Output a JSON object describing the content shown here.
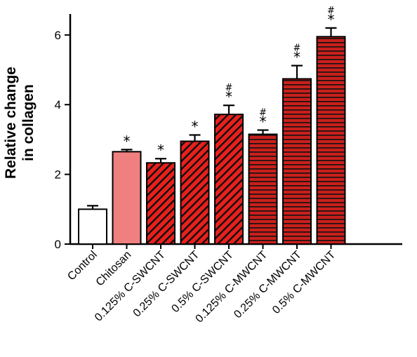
{
  "chart_data": {
    "type": "bar",
    "title": "",
    "xlabel": "",
    "ylabel_lines": [
      "Relative change",
      "in collagen"
    ],
    "ylim": [
      0,
      6.6
    ],
    "yticks": [
      "0",
      "2",
      "4",
      "6"
    ],
    "categories": [
      "Control",
      "Chitosan",
      "0.125% C-SWCNT",
      "0.25% C-SWCNT",
      "0.5% C-SWCNT",
      "0.125% C-MWCNT",
      "0.25% C-MWCNT",
      "0.5% C-MWCNT"
    ],
    "values": [
      1.0,
      2.65,
      2.33,
      2.95,
      3.72,
      3.15,
      4.74,
      5.95
    ],
    "errors": [
      0.1,
      0.06,
      0.12,
      0.18,
      0.26,
      0.12,
      0.38,
      0.25
    ],
    "annotations": [
      {
        "star": "",
        "hash": ""
      },
      {
        "star": "*",
        "hash": ""
      },
      {
        "star": "*",
        "hash": ""
      },
      {
        "star": "*",
        "hash": ""
      },
      {
        "star": "*",
        "hash": "#"
      },
      {
        "star": "*",
        "hash": "#"
      },
      {
        "star": "*",
        "hash": "#"
      },
      {
        "star": "*",
        "hash": "#"
      }
    ],
    "bar_styles": [
      "plain",
      "plain",
      "diagonal",
      "diagonal",
      "diagonal",
      "horizontal",
      "horizontal",
      "horizontal"
    ],
    "bar_fills": [
      "#ffffff",
      "#f08080",
      "#e8201c",
      "#e8201c",
      "#e8201c",
      "#c8201c",
      "#c8201c",
      "#c8201c"
    ],
    "grid": false,
    "legend": "none"
  }
}
